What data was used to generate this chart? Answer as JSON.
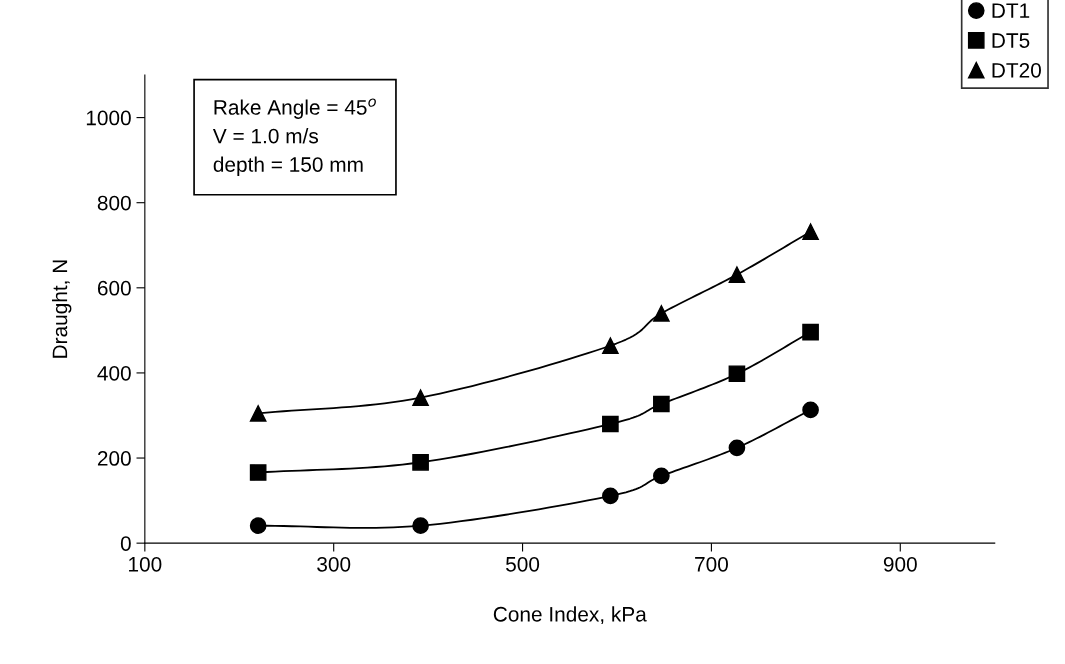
{
  "chart_data": {
    "type": "line",
    "xlabel": "Cone Index, kPa",
    "ylabel": "Draught, N",
    "x": [
      220,
      392,
      593,
      647,
      727,
      805
    ],
    "series": [
      {
        "name": "DT1",
        "color": "#000000",
        "marker": "circle",
        "values": [
          41,
          41,
          111,
          158,
          224,
          313
        ]
      },
      {
        "name": "DT5",
        "color": "#000000",
        "marker": "square",
        "values": [
          166,
          190,
          280,
          327,
          398,
          496
        ]
      },
      {
        "name": "DT20",
        "color": "#000000",
        "marker": "triangle",
        "values": [
          305,
          342,
          464,
          540,
          631,
          732
        ]
      }
    ],
    "annotations": [
      "Rake Angle = 45$^{o}$\nV = 1.0 m/s\ndepth = 150 mm"
    ],
    "xlim": [
      100,
      1000
    ],
    "ylim": [
      0,
      1100
    ],
    "xticks": [
      100,
      300,
      500,
      700,
      900
    ],
    "yticks": [
      0,
      200,
      400,
      600,
      800,
      1000
    ],
    "grid": false,
    "legend": "top right",
    "line_style": "solid"
  }
}
